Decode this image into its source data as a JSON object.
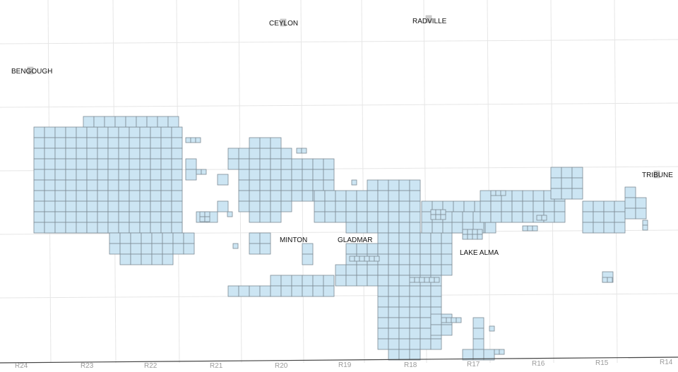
{
  "map": {
    "towns": [
      {
        "id": "ceylon",
        "label": "CEYLON"
      },
      {
        "id": "radville",
        "label": "RADVILLE"
      },
      {
        "id": "bengough",
        "label": "BENGOUGH"
      },
      {
        "id": "tribune",
        "label": "TRIBUNE"
      },
      {
        "id": "minton",
        "label": "MINTON"
      },
      {
        "id": "gladmar",
        "label": "GLADMAR"
      },
      {
        "id": "lake-alma",
        "label": "LAKE ALMA"
      }
    ],
    "ranges": [
      "R24",
      "R23",
      "R22",
      "R21",
      "R20",
      "R19",
      "R18",
      "R17",
      "R16",
      "R15",
      "R14"
    ],
    "colors": {
      "parcel_fill": "#cce5f3",
      "parcel_stroke": "#7d8b94",
      "grid": "#e6e6e6",
      "border": "#444444",
      "range_label": "#9a9a9a"
    }
  }
}
